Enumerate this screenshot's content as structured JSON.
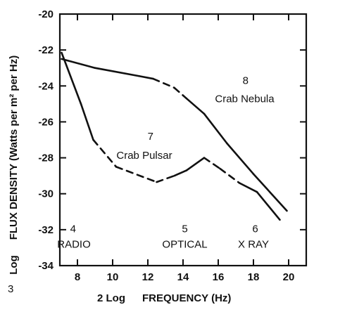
{
  "chart_data": {
    "type": "line",
    "xlim": [
      7,
      21
    ],
    "ylim": [
      -34,
      -20
    ],
    "x_ticks": [
      8,
      10,
      12,
      14,
      16,
      18,
      20
    ],
    "y_ticks": [
      -20,
      -22,
      -24,
      -26,
      -28,
      -30,
      -32,
      -34
    ],
    "ylabel": "FLUX DENSITY  (Watts per m² per Hz)",
    "ylabel_prefix": "Log",
    "xlabel": "FREQUENCY  (Hz)",
    "xlabel_prefix": "2 Log",
    "corner_mark": "3",
    "series": [
      {
        "points": [
          [
            7.1,
            -22.5
          ],
          [
            9.0,
            -23.0
          ],
          [
            11.5,
            -23.45
          ],
          [
            12.3,
            -23.6
          ],
          [
            13.5,
            -24.1
          ],
          [
            14.2,
            -24.7
          ],
          [
            15.2,
            -25.55
          ],
          [
            16.5,
            -27.2
          ],
          [
            18.0,
            -28.9
          ],
          [
            19.9,
            -30.95
          ]
        ],
        "dash": [
          false,
          false,
          false,
          true,
          true,
          false,
          false,
          false,
          false
        ]
      },
      {
        "points": [
          [
            7.1,
            -22.15
          ],
          [
            8.2,
            -25.0
          ],
          [
            8.9,
            -27.0
          ],
          [
            10.2,
            -28.5
          ],
          [
            12.5,
            -29.35
          ],
          [
            13.5,
            -29.0
          ],
          [
            14.2,
            -28.7
          ],
          [
            15.2,
            -28.0
          ],
          [
            16.1,
            -28.6
          ],
          [
            17.2,
            -29.4
          ],
          [
            18.2,
            -29.9
          ],
          [
            19.5,
            -31.45
          ]
        ],
        "dash": [
          false,
          false,
          true,
          true,
          true,
          false,
          false,
          true,
          true,
          false,
          false
        ]
      }
    ],
    "annotations": [
      {
        "text": "8",
        "x": 17.55,
        "y": -23.9
      },
      {
        "text": "Crab Nebula",
        "x": 17.5,
        "y": -24.9
      },
      {
        "text": "7",
        "x": 12.15,
        "y": -27.0
      },
      {
        "text": "Crab Pulsar",
        "x": 11.8,
        "y": -28.05
      },
      {
        "text": "4",
        "x": 7.75,
        "y": -32.15
      },
      {
        "text": "RADIO",
        "x": 7.8,
        "y": -33.0
      },
      {
        "text": "5",
        "x": 14.1,
        "y": -32.15
      },
      {
        "text": "OPTICAL",
        "x": 14.1,
        "y": -33.0
      },
      {
        "text": "6",
        "x": 18.1,
        "y": -32.15
      },
      {
        "text": "X RAY",
        "x": 18.0,
        "y": -33.0
      }
    ]
  }
}
